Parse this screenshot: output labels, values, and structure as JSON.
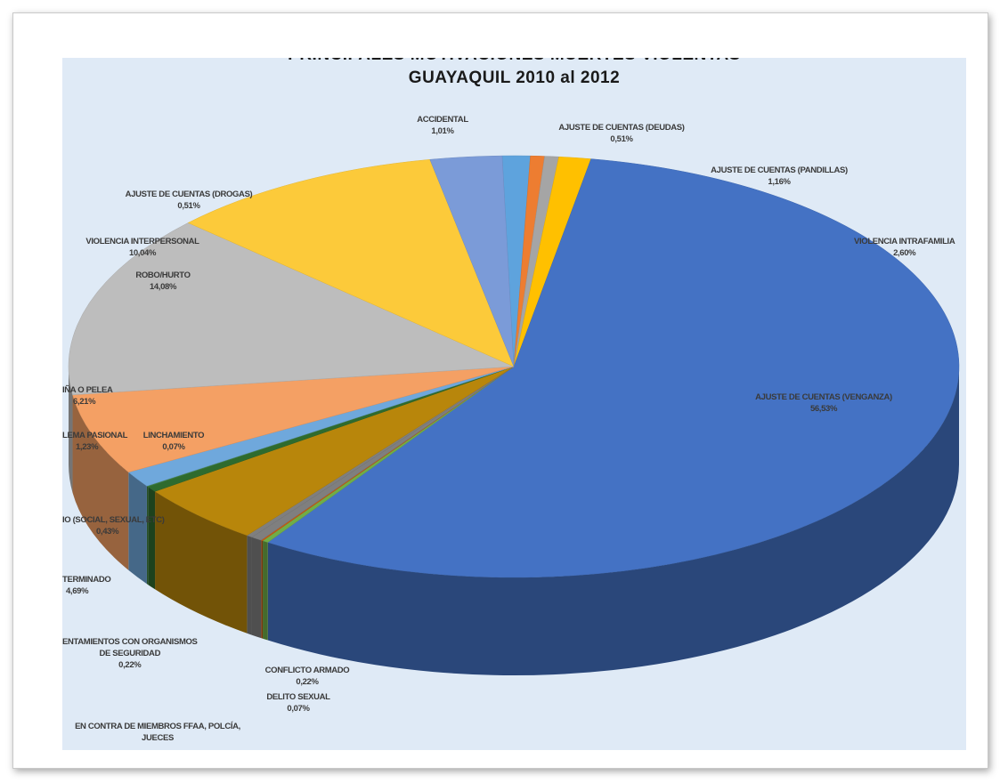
{
  "chart_data": {
    "type": "pie",
    "style": "3d-exploded-tilted",
    "title_line1": "PRINCIPALES MOTIVACIONES MUERTES VIOLENTAS",
    "title_line2": "GUAYAQUIL 2010 al 2012",
    "slices": [
      {
        "label": "ACCIDENTAL",
        "value": 1.01,
        "text": "1,01%",
        "color": "#5ea3dd"
      },
      {
        "label": "AJUSTE DE CUENTAS (DEUDAS)",
        "value": 0.51,
        "text": "0,51%",
        "color": "#ed7d31"
      },
      {
        "label": "AJUSTE DE CUENTAS (DROGAS)",
        "value": 0.51,
        "text": "0,51%",
        "color": "#a5a5a5"
      },
      {
        "label": "AJUSTE DE CUENTAS (PANDILLAS)",
        "value": 1.16,
        "text": "1,16%",
        "color": "#ffc000"
      },
      {
        "label": "AJUSTE DE CUENTAS (VENGANZA)",
        "value": 56.53,
        "text": "56,53%",
        "color": "#4472c4"
      },
      {
        "label": "CONFLICTO ARMADO",
        "value": 0.22,
        "text": "0,22%",
        "color": "#70ad47"
      },
      {
        "label": "DELITO SEXUAL",
        "value": 0.07,
        "text": "0,07%",
        "color": "#c55a11"
      },
      {
        "label": "EN CONTRA DE MIEMBROS FFAA, POLCÍA, JUECES",
        "value": 0.4,
        "text": "",
        "color": "#7f7f7f"
      },
      {
        "label": "ENTAMIENTOS CON ORGANISMOS DE SEGURIDAD",
        "value": 0.22,
        "text": "0,22%",
        "color": "#7f7f7f"
      },
      {
        "label": "TERMINADO",
        "value": 4.69,
        "text": "4,69%",
        "color": "#b8860b"
      },
      {
        "label": "IO (SOCIAL, SEXUAL, ETC)",
        "value": 0.43,
        "text": "0,43%",
        "color": "#2e6b2e"
      },
      {
        "label": "LINCHAMIENTO",
        "value": 0.07,
        "text": "0,07%",
        "color": "#3f7f3f"
      },
      {
        "label": "LEMA PASIONAL",
        "value": 1.23,
        "text": "1,23%",
        "color": "#6fa8dc"
      },
      {
        "label": "IÑA O PELEA",
        "value": 6.21,
        "text": "6,21%",
        "color": "#f4a064"
      },
      {
        "label": "ROBO/HURTO",
        "value": 14.08,
        "text": "14,08%",
        "color": "#bdbdbd"
      },
      {
        "label": "VIOLENCIA INTERPERSONAL",
        "value": 10.04,
        "text": "10,04%",
        "color": "#fcca3a"
      },
      {
        "label": "VIOLENCIA INTRAFAMILIA",
        "value": 2.6,
        "text": "2,60%",
        "color": "#7b9bd8"
      }
    ],
    "labels": {
      "accidental": [
        "ACCIDENTAL",
        "1,01%"
      ],
      "deudas": [
        "AJUSTE DE CUENTAS (DEUDAS)",
        "0,51%"
      ],
      "pandillas": [
        "AJUSTE DE CUENTAS (PANDILLAS)",
        "1,16%"
      ],
      "drogas": [
        "AJUSTE DE CUENTAS (DROGAS)",
        "0,51%"
      ],
      "intrafamilia": [
        "VIOLENCIA INTRAFAMILIA",
        "2,60%"
      ],
      "interpersonal": [
        "VIOLENCIA INTERPERSONAL",
        "10,04%"
      ],
      "robo": [
        "ROBO/HURTO",
        "14,08%"
      ],
      "venganza": [
        "AJUSTE DE CUENTAS (VENGANZA)",
        "56,53%"
      ],
      "rina": [
        "IÑA O PELEA",
        "6,21%"
      ],
      "pasional": [
        "LEMA PASIONAL",
        "1,23%"
      ],
      "linchamiento": [
        "LINCHAMIENTO",
        "0,07%"
      ],
      "social": [
        "IO (SOCIAL, SEXUAL, ETC)",
        "0,43%"
      ],
      "terminado": [
        "TERMINADO",
        "4,69%"
      ],
      "seguridad": [
        "ENTAMIENTOS CON ORGANISMOS",
        "DE SEGURIDAD",
        "0,22%"
      ],
      "conflicto": [
        "CONFLICTO ARMADO",
        "0,22%"
      ],
      "delito": [
        "DELITO SEXUAL",
        "0,07%"
      ],
      "contra": [
        "EN CONTRA DE MIEMBROS FFAA, POLCÍA,",
        "JUECES"
      ]
    }
  }
}
